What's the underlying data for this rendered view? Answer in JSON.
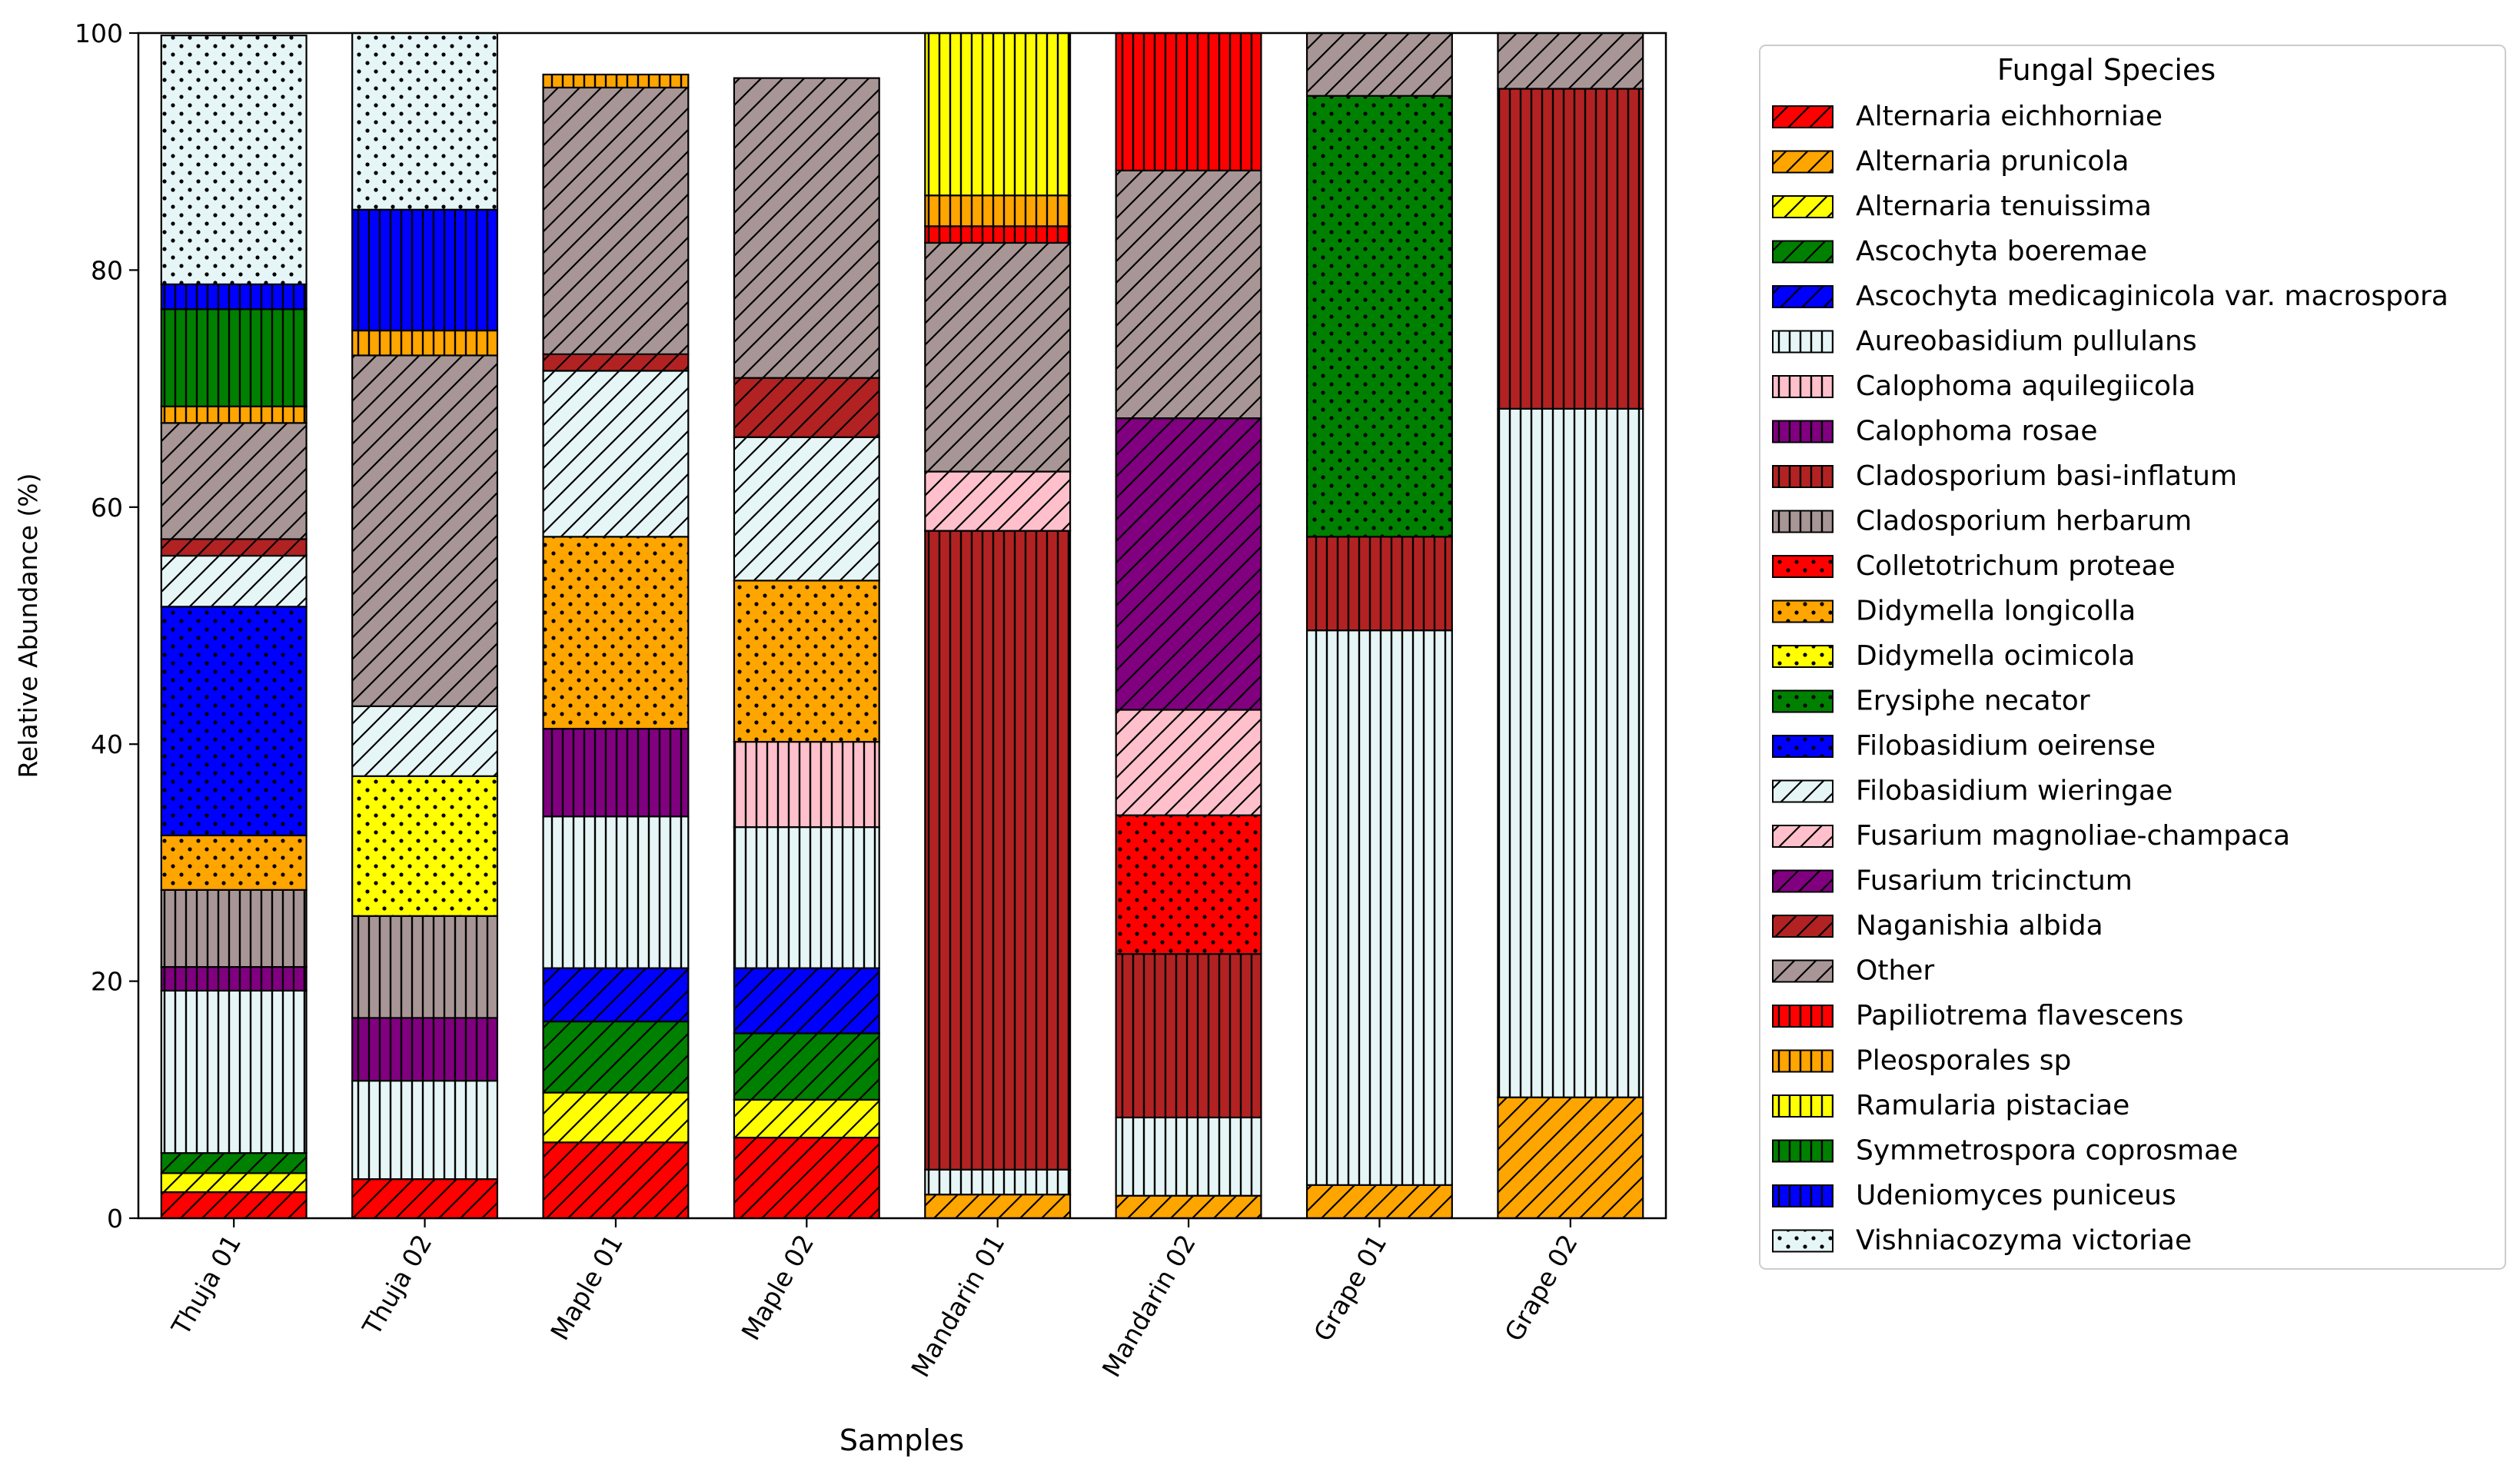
{
  "chart_data": {
    "type": "bar",
    "stacked": true,
    "percent": true,
    "xlabel": "Samples",
    "ylabel": "Relative Abundance (%)",
    "ylim": [
      0,
      100
    ],
    "yticks": [
      0,
      20,
      40,
      60,
      80,
      100
    ],
    "grid": false,
    "legend_title": "Fungal Species",
    "legend_position": "outside-right",
    "categories": [
      "Thuja 01",
      "Thuja 02",
      "Maple 01",
      "Maple 02",
      "Mandarin 01",
      "Mandarin 02",
      "Grape 01",
      "Grape 02"
    ],
    "series": [
      {
        "name": "Alternaria eichhorniae",
        "color": "#ff0000",
        "hatch": "diag",
        "values": [
          2.2,
          3.3,
          6.4,
          6.8,
          0,
          0,
          0,
          0
        ]
      },
      {
        "name": "Alternaria prunicola",
        "color": "#ffa500",
        "hatch": "diag",
        "values": [
          0,
          0,
          0,
          0,
          2.0,
          1.9,
          2.8,
          10.2
        ]
      },
      {
        "name": "Alternaria tenuissima",
        "color": "#ffff00",
        "hatch": "diag",
        "values": [
          1.6,
          0,
          4.2,
          3.2,
          0,
          0,
          0,
          0
        ]
      },
      {
        "name": "Ascochyta boeremae",
        "color": "#008000",
        "hatch": "diag",
        "values": [
          1.7,
          0,
          6.0,
          5.6,
          0,
          0,
          0,
          0
        ]
      },
      {
        "name": "Ascochyta medicaginicola var. macrospora",
        "color": "#0000ff",
        "hatch": "diag",
        "values": [
          0,
          0,
          4.5,
          5.5,
          0,
          0,
          0,
          0
        ]
      },
      {
        "name": "Aureobasidium pullulans",
        "color": "#e6f5f5",
        "hatch": "vert",
        "values": [
          13.7,
          8.3,
          12.8,
          11.9,
          2.1,
          6.6,
          46.8,
          58.1
        ]
      },
      {
        "name": "Calophoma aquilegiicola",
        "color": "#ffc0cb",
        "hatch": "vert",
        "values": [
          0,
          0,
          0,
          7.2,
          0,
          0,
          0,
          0
        ]
      },
      {
        "name": "Calophoma rosae",
        "color": "#800080",
        "hatch": "vert",
        "values": [
          2.0,
          5.3,
          7.4,
          0,
          0,
          0,
          0,
          0
        ]
      },
      {
        "name": "Cladosporium basi-inflatum",
        "color": "#b22222",
        "hatch": "vert",
        "values": [
          0,
          0,
          0,
          0,
          53.9,
          13.8,
          7.9,
          27.0
        ]
      },
      {
        "name": "Cladosporium herbarum",
        "color": "#a89696",
        "hatch": "vert",
        "values": [
          6.5,
          8.6,
          0,
          0,
          0,
          0,
          0,
          0
        ]
      },
      {
        "name": "Colletotrichum proteae",
        "color": "#ff0000",
        "hatch": "dots",
        "values": [
          0,
          0,
          0,
          0,
          0,
          11.7,
          0,
          0
        ]
      },
      {
        "name": "Didymella longicolla",
        "color": "#ffa500",
        "hatch": "dots",
        "values": [
          4.6,
          0,
          16.2,
          13.6,
          0,
          0,
          0,
          0
        ]
      },
      {
        "name": "Didymella ocimicola",
        "color": "#ffff00",
        "hatch": "dots",
        "values": [
          0,
          11.8,
          0,
          0,
          0,
          0,
          0,
          0
        ]
      },
      {
        "name": "Erysiphe necator",
        "color": "#008000",
        "hatch": "dots",
        "values": [
          0,
          0,
          0,
          0,
          0,
          0,
          37.2,
          0
        ]
      },
      {
        "name": "Filobasidium oeirense",
        "color": "#0000ff",
        "hatch": "dots",
        "values": [
          19.3,
          0,
          0,
          0,
          0,
          0,
          0,
          0
        ]
      },
      {
        "name": "Filobasidium wieringae",
        "color": "#e6f5f5",
        "hatch": "diag",
        "values": [
          4.3,
          5.9,
          14.0,
          12.1,
          0,
          0,
          0,
          0
        ]
      },
      {
        "name": "Fusarium magnoliae-champaca",
        "color": "#ffc0cb",
        "hatch": "diag",
        "values": [
          0,
          0,
          0,
          0,
          5.0,
          8.9,
          0,
          0
        ]
      },
      {
        "name": "Fusarium tricinctum",
        "color": "#800080",
        "hatch": "diag",
        "values": [
          0,
          0,
          0,
          0,
          0,
          24.6,
          0,
          0
        ]
      },
      {
        "name": "Naganishia albida",
        "color": "#b22222",
        "hatch": "diag",
        "values": [
          1.4,
          0,
          1.4,
          5.0,
          0,
          0,
          0,
          0
        ]
      },
      {
        "name": "Other",
        "color": "#a89696",
        "hatch": "diag",
        "values": [
          9.8,
          29.6,
          22.5,
          25.3,
          19.3,
          20.9,
          5.3,
          4.7
        ]
      },
      {
        "name": "Papiliotrema flavescens",
        "color": "#ff0000",
        "hatch": "vert",
        "values": [
          0,
          0,
          0,
          0,
          1.4,
          11.6,
          0,
          0
        ]
      },
      {
        "name": "Pleosporales sp",
        "color": "#ffa500",
        "hatch": "vert",
        "values": [
          1.4,
          2.1,
          1.1,
          0,
          2.6,
          0,
          0,
          0
        ]
      },
      {
        "name": "Ramularia pistaciae",
        "color": "#ffff00",
        "hatch": "vert",
        "values": [
          0,
          0,
          0,
          0,
          13.7,
          0,
          0,
          0
        ]
      },
      {
        "name": "Symmetrospora coprosmae",
        "color": "#008000",
        "hatch": "vert",
        "values": [
          8.2,
          0,
          0,
          0,
          0,
          0,
          0,
          0
        ]
      },
      {
        "name": "Udeniomyces puniceus",
        "color": "#0000ff",
        "hatch": "vert",
        "values": [
          2.1,
          10.2,
          0,
          0,
          0,
          0,
          0,
          0
        ]
      },
      {
        "name": "Vishniacozyma victoriae",
        "color": "#e6f5f5",
        "hatch": "dots",
        "values": [
          21.0,
          14.9,
          0,
          0,
          0,
          0,
          0,
          0
        ]
      }
    ]
  }
}
